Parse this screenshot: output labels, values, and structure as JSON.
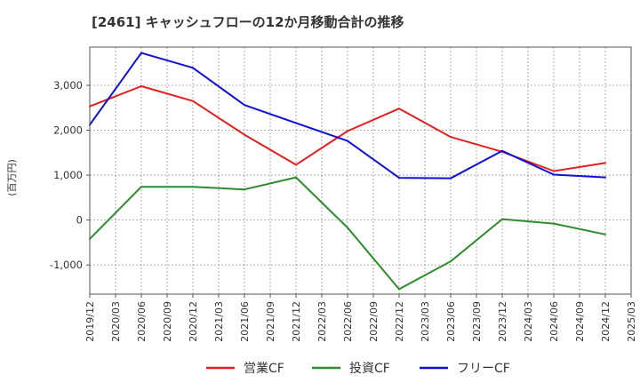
{
  "chart_data": {
    "type": "line",
    "title": "[2461]  キャッシュフローの12か月移動合計の推移",
    "ylabel": "(百万円)",
    "xlabel": "",
    "ylim": [
      -1650,
      3850
    ],
    "yticks": [
      -1000,
      0,
      1000,
      2000,
      3000
    ],
    "ytick_labels": [
      "-1,000",
      "0",
      "1,000",
      "2,000",
      "3,000"
    ],
    "x_tick_labels": [
      "2019/12",
      "2020/03",
      "2020/06",
      "2020/09",
      "2020/12",
      "2021/03",
      "2021/06",
      "2021/09",
      "2021/12",
      "2022/03",
      "2022/06",
      "2022/09",
      "2022/12",
      "2023/03",
      "2023/06",
      "2023/09",
      "2023/12",
      "2024/03",
      "2024/06",
      "2024/09",
      "2024/12",
      "2025/03"
    ],
    "grid": true,
    "legend_position": "bottom",
    "series": [
      {
        "name": "営業CF",
        "color": "#e02020",
        "x": [
          "2019/12",
          "2020/06",
          "2020/12",
          "2021/06",
          "2021/12",
          "2022/06",
          "2022/12",
          "2023/06",
          "2023/12",
          "2024/06",
          "2024/12"
        ],
        "values": [
          2530,
          2980,
          2650,
          1900,
          1230,
          1980,
          2480,
          1850,
          1520,
          1090,
          1270
        ]
      },
      {
        "name": "投資CF",
        "color": "#2e8b2e",
        "x": [
          "2019/12",
          "2020/06",
          "2020/12",
          "2021/06",
          "2021/12",
          "2022/06",
          "2022/12",
          "2023/06",
          "2023/12",
          "2024/06",
          "2024/12"
        ],
        "values": [
          -420,
          740,
          740,
          680,
          950,
          -170,
          -1540,
          -920,
          20,
          -80,
          -320
        ]
      },
      {
        "name": "フリーCF",
        "color": "#1010d0",
        "x": [
          "2019/12",
          "2020/06",
          "2020/12",
          "2021/06",
          "2021/12",
          "2022/06",
          "2022/12",
          "2023/06",
          "2023/12",
          "2024/06",
          "2024/12"
        ],
        "values": [
          2120,
          3720,
          3390,
          2560,
          2160,
          1760,
          940,
          930,
          1540,
          1010,
          950
        ]
      }
    ]
  }
}
